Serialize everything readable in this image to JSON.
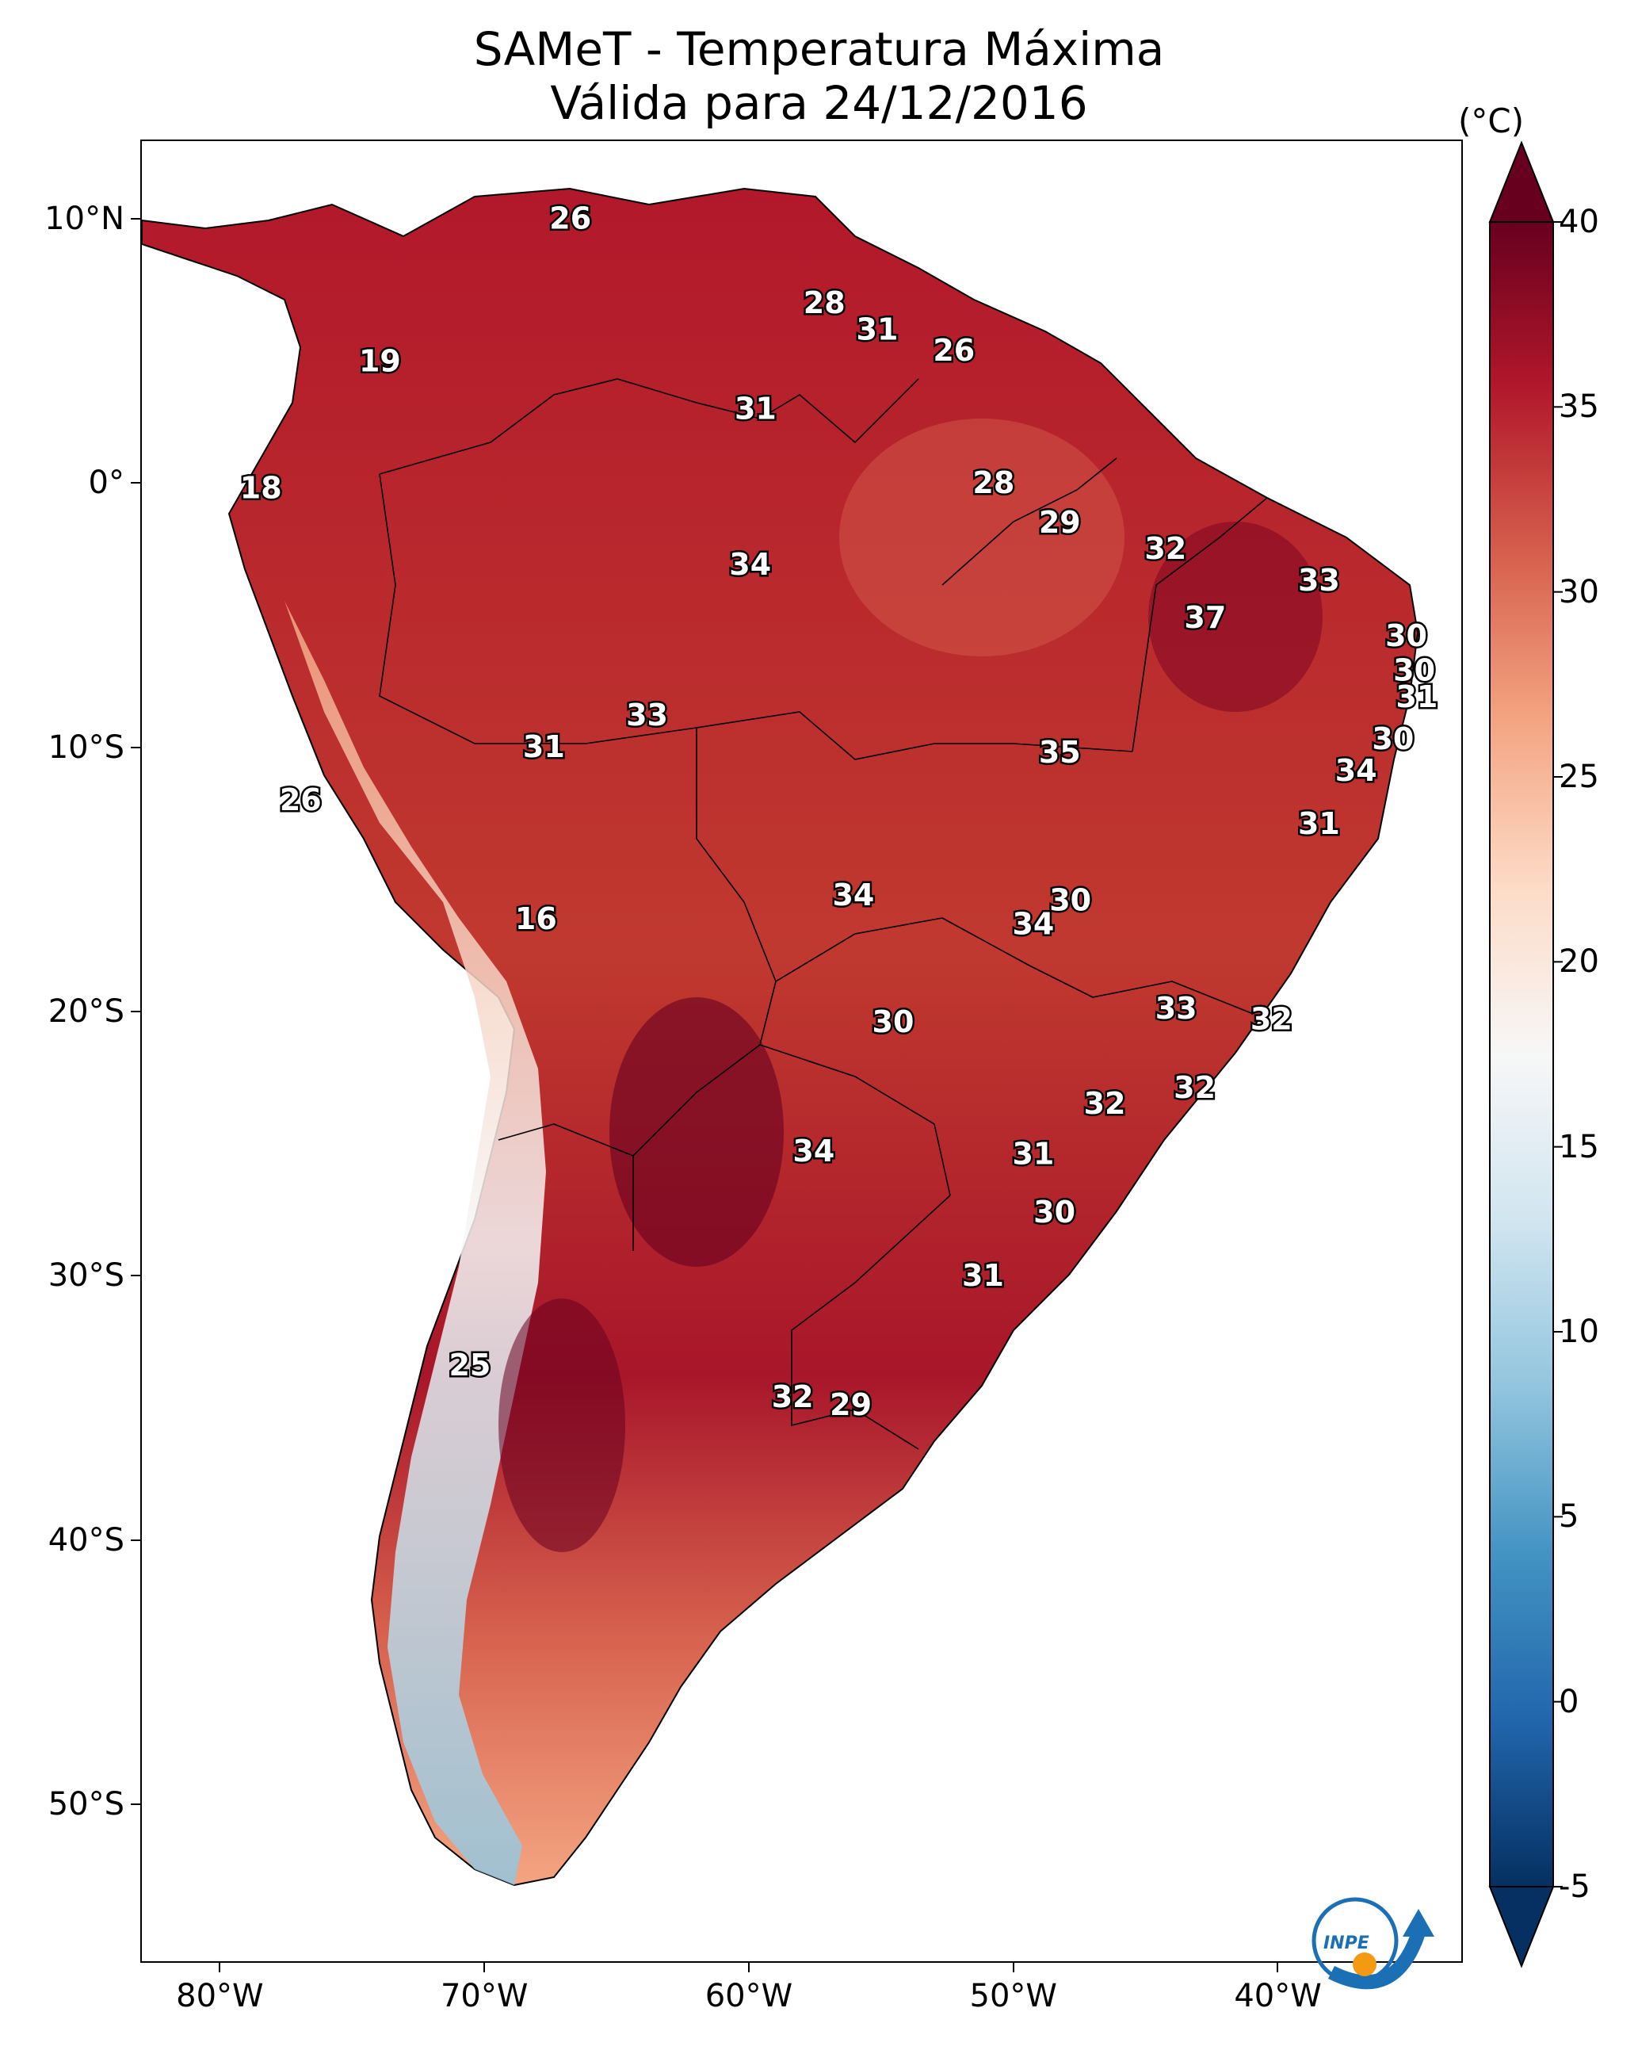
{
  "title": {
    "line1": "SAMeT - Temperatura Máxima",
    "line2": "Válida para 24/12/2016"
  },
  "axes": {
    "lon_labels": [
      "80°W",
      "70°W",
      "60°W",
      "50°W",
      "40°W"
    ],
    "lat_labels": [
      "10°N",
      "0°",
      "10°S",
      "20°S",
      "30°S",
      "40°S",
      "50°S"
    ],
    "lon_values": [
      -80,
      -70,
      -60,
      -50,
      -40
    ],
    "lat_values": [
      10,
      0,
      -10,
      -20,
      -30,
      -40,
      -50
    ],
    "lon_range": [
      -83,
      -33
    ],
    "lat_range": [
      13,
      -56
    ]
  },
  "colorbar": {
    "unit": "(°C)",
    "ticks": [
      "40",
      "35",
      "30",
      "25",
      "20",
      "15",
      "10",
      "5",
      "0",
      "-5"
    ],
    "tick_values": [
      40,
      35,
      30,
      25,
      20,
      15,
      10,
      5,
      0,
      -5
    ],
    "range": [
      -5,
      40
    ],
    "colormap": "RdBu_r",
    "colors": [
      "#053061",
      "#2166ac",
      "#4393c3",
      "#92c5de",
      "#d1e5f0",
      "#f7f7f7",
      "#fddbc7",
      "#f4a582",
      "#d6604d",
      "#b2182b",
      "#67001f"
    ]
  },
  "station_labels": [
    {
      "label": "26",
      "lon": -66.8,
      "lat": 10.0
    },
    {
      "label": "19",
      "lon": -74.0,
      "lat": 4.6
    },
    {
      "label": "28",
      "lon": -57.2,
      "lat": 6.8
    },
    {
      "label": "31",
      "lon": -55.2,
      "lat": 5.8
    },
    {
      "label": "26",
      "lon": -52.3,
      "lat": 5.0
    },
    {
      "label": "31",
      "lon": -59.8,
      "lat": 2.8
    },
    {
      "label": "18",
      "lon": -78.5,
      "lat": -0.2
    },
    {
      "label": "28",
      "lon": -50.8,
      "lat": 0.0
    },
    {
      "label": "29",
      "lon": -48.3,
      "lat": -1.5
    },
    {
      "label": "34",
      "lon": -60.0,
      "lat": -3.1
    },
    {
      "label": "32",
      "lon": -44.3,
      "lat": -2.5
    },
    {
      "label": "33",
      "lon": -38.5,
      "lat": -3.7
    },
    {
      "label": "37",
      "lon": -42.8,
      "lat": -5.1
    },
    {
      "label": "30",
      "lon": -35.2,
      "lat": -5.8
    },
    {
      "label": "30",
      "lon": -34.9,
      "lat": -7.1
    },
    {
      "label": "31",
      "lon": -34.8,
      "lat": -8.1
    },
    {
      "label": "33",
      "lon": -63.9,
      "lat": -8.8
    },
    {
      "label": "31",
      "lon": -67.8,
      "lat": -10.0
    },
    {
      "label": "35",
      "lon": -48.3,
      "lat": -10.2
    },
    {
      "label": "30",
      "lon": -35.7,
      "lat": -9.7
    },
    {
      "label": "34",
      "lon": -37.1,
      "lat": -10.9
    },
    {
      "label": "26",
      "lon": -77.0,
      "lat": -12.0
    },
    {
      "label": "31",
      "lon": -38.5,
      "lat": -12.9
    },
    {
      "label": "34",
      "lon": -56.1,
      "lat": -15.6
    },
    {
      "label": "30",
      "lon": -47.9,
      "lat": -15.8
    },
    {
      "label": "34",
      "lon": -49.3,
      "lat": -16.7
    },
    {
      "label": "16",
      "lon": -68.1,
      "lat": -16.5
    },
    {
      "label": "33",
      "lon": -43.9,
      "lat": -19.9
    },
    {
      "label": "32",
      "lon": -40.3,
      "lat": -20.3
    },
    {
      "label": "30",
      "lon": -54.6,
      "lat": -20.4
    },
    {
      "label": "32",
      "lon": -43.2,
      "lat": -22.9
    },
    {
      "label": "32",
      "lon": -46.6,
      "lat": -23.5
    },
    {
      "label": "34",
      "lon": -57.6,
      "lat": -25.3
    },
    {
      "label": "31",
      "lon": -49.3,
      "lat": -25.4
    },
    {
      "label": "30",
      "lon": -48.5,
      "lat": -27.6
    },
    {
      "label": "31",
      "lon": -51.2,
      "lat": -30.0
    },
    {
      "label": "25",
      "lon": -70.6,
      "lat": -33.4
    },
    {
      "label": "32",
      "lon": -58.4,
      "lat": -34.6
    },
    {
      "label": "29",
      "lon": -56.2,
      "lat": -34.9
    }
  ],
  "logo": {
    "text": "INPE"
  }
}
